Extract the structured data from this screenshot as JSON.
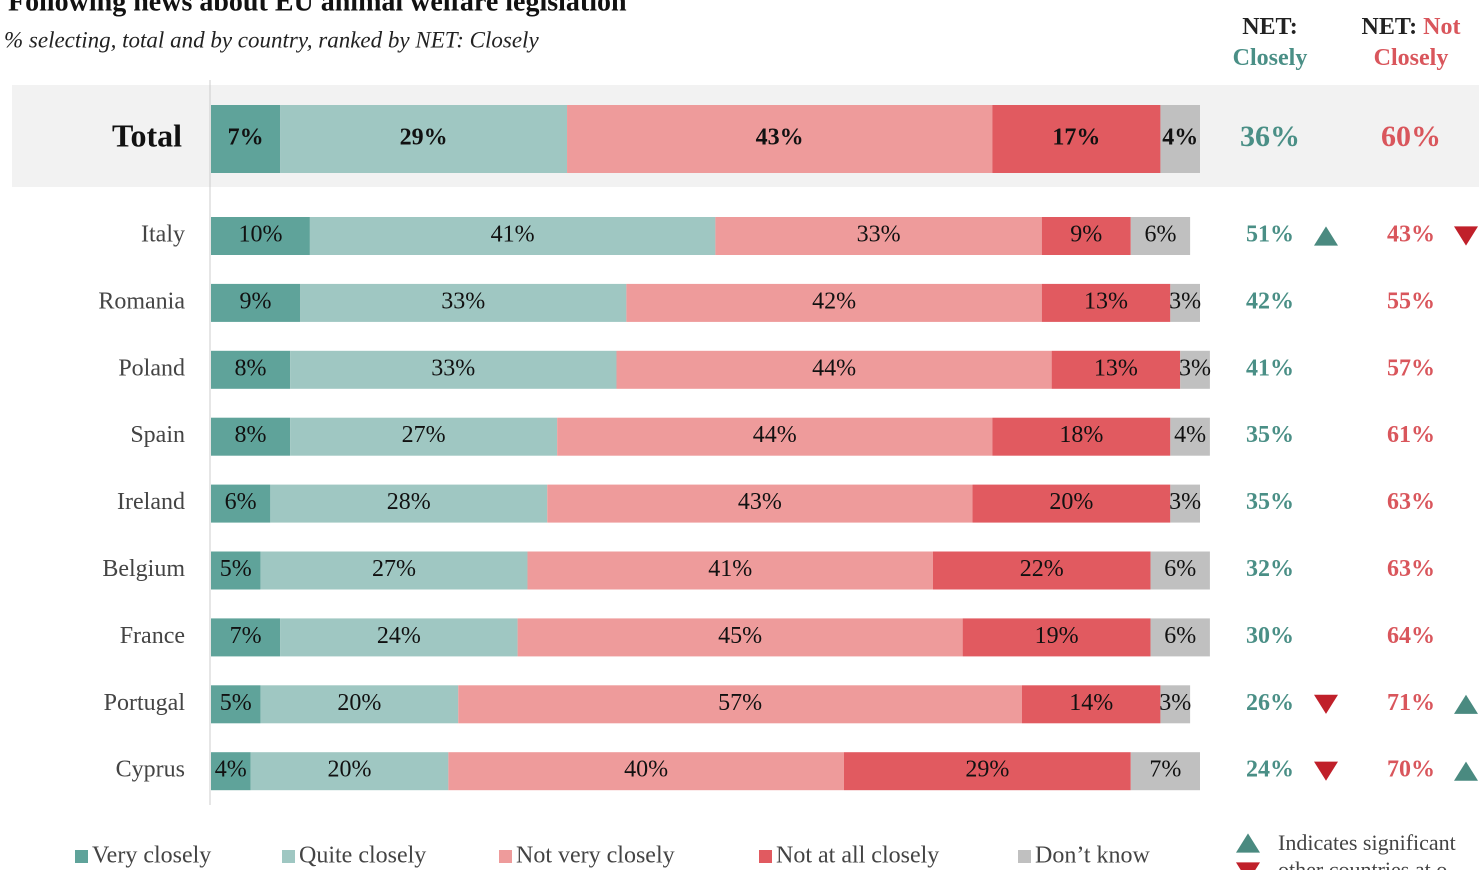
{
  "chart_data": {
    "type": "stacked_bar",
    "orientation": "horizontal",
    "title": "Following news about EU animal welfare legislation",
    "subtitle": "% selecting, total and by country, ranked by NET: Closely",
    "categories": [
      "Total",
      "Italy",
      "Romania",
      "Poland",
      "Spain",
      "Ireland",
      "Belgium",
      "France",
      "Portugal",
      "Cyprus"
    ],
    "xlim": [
      0,
      100
    ],
    "series": [
      {
        "name": "Very closely",
        "color": "#5fa39a",
        "values": [
          7,
          10,
          9,
          8,
          8,
          6,
          5,
          7,
          5,
          4
        ],
        "value_labels": [
          "7%",
          "10%",
          "9%",
          "8%",
          "8%",
          "6%",
          "5%",
          "7%",
          "5%",
          "4%"
        ]
      },
      {
        "name": "Quite closely",
        "color": "#9fc7c2",
        "values": [
          29,
          41,
          33,
          33,
          27,
          28,
          27,
          24,
          20,
          20
        ],
        "value_labels": [
          "29%",
          "41%",
          "33%",
          "33%",
          "27%",
          "28%",
          "27%",
          "24%",
          "20%",
          "20%"
        ]
      },
      {
        "name": "Not very closely",
        "color": "#ee9b9b",
        "values": [
          43,
          33,
          42,
          44,
          44,
          43,
          41,
          45,
          57,
          40
        ],
        "value_labels": [
          "43%",
          "33%",
          "42%",
          "44%",
          "44%",
          "43%",
          "41%",
          "45%",
          "57%",
          "40%"
        ]
      },
      {
        "name": "Not at all closely",
        "color": "#e15a60",
        "values": [
          17,
          9,
          13,
          13,
          18,
          20,
          22,
          19,
          14,
          29
        ],
        "value_labels": [
          "17%",
          "9%",
          "13%",
          "13%",
          "18%",
          "20%",
          "22%",
          "19%",
          "14%",
          "29%"
        ]
      },
      {
        "name": "Don’t know",
        "color": "#c0c0c0",
        "values": [
          4,
          6,
          3,
          3,
          4,
          3,
          6,
          6,
          3,
          7
        ],
        "value_labels": [
          "4%",
          "6%",
          "3%",
          "3%",
          "4%",
          "3%",
          "6%",
          "6%",
          "3%",
          "7%"
        ]
      }
    ],
    "net_columns": [
      {
        "prefix": "NET:",
        "name": "Closely",
        "color": "#4a8f86",
        "values": [
          36,
          51,
          42,
          41,
          35,
          35,
          32,
          30,
          26,
          24
        ],
        "value_labels": [
          "36%",
          "51%",
          "42%",
          "41%",
          "35%",
          "35%",
          "32%",
          "30%",
          "26%",
          "24%"
        ],
        "significance": [
          null,
          "up",
          null,
          null,
          null,
          null,
          null,
          null,
          "down",
          "down"
        ]
      },
      {
        "prefix": "NET:",
        "name": "Not Closely",
        "color": "#d9565c",
        "values": [
          60,
          43,
          55,
          57,
          61,
          63,
          63,
          64,
          71,
          70
        ],
        "value_labels": [
          "60%",
          "43%",
          "55%",
          "57%",
          "61%",
          "63%",
          "63%",
          "64%",
          "71%",
          "70%"
        ],
        "significance": [
          null,
          "down",
          null,
          null,
          null,
          null,
          null,
          null,
          "up",
          "up"
        ]
      }
    ],
    "note": [
      "Indicates significant",
      "other countries at o"
    ],
    "up_color": "#4a8a80",
    "down_color": "#c0202a"
  }
}
